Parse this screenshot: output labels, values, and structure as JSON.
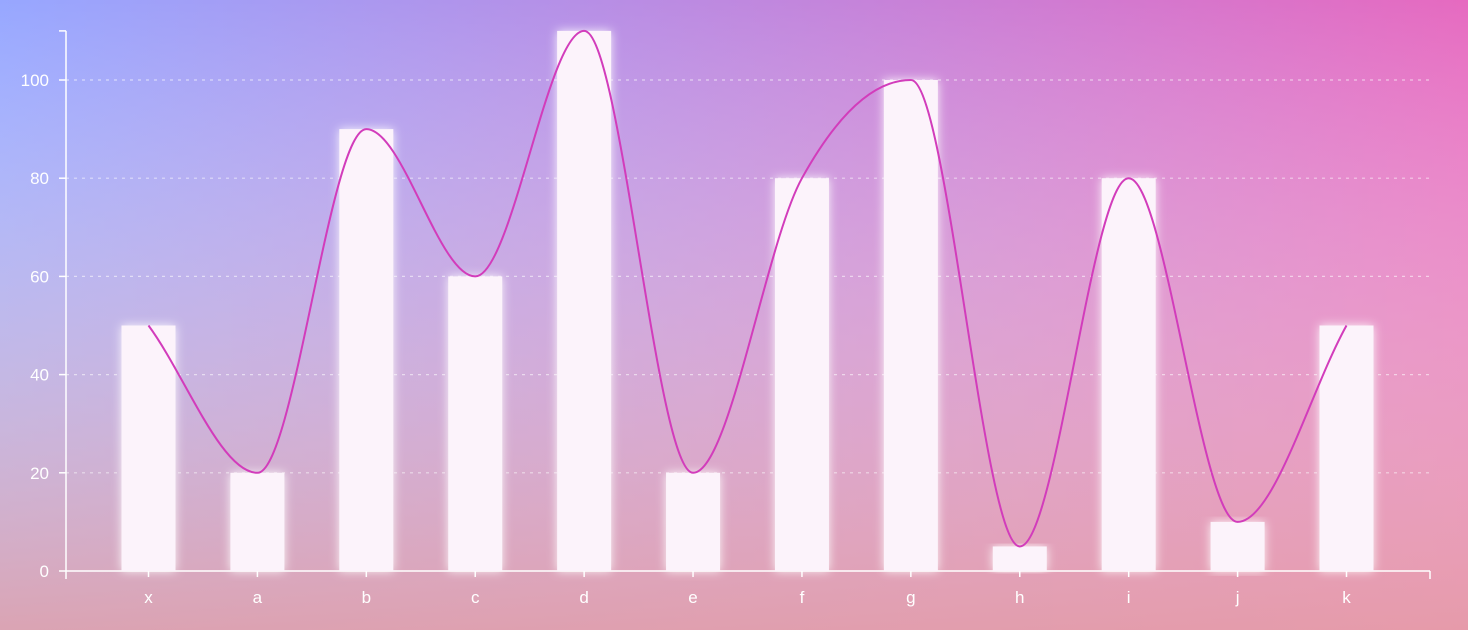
{
  "colors": {
    "bg_top_left": "#97a7ff",
    "bg_top_right": "#e66ac0",
    "bg_bottom": "#e6a3a6",
    "bar_fill": "#fcf3fb",
    "line": "#d23cbb"
  },
  "chart_data": {
    "type": "bar",
    "categories": [
      "x",
      "a",
      "b",
      "c",
      "d",
      "e",
      "f",
      "g",
      "h",
      "i",
      "j",
      "k"
    ],
    "series": [
      {
        "type": "bar",
        "values": [
          50,
          20,
          90,
          60,
          110,
          20,
          80,
          100,
          5,
          80,
          10,
          50
        ]
      },
      {
        "type": "line",
        "smooth": true,
        "values": [
          50,
          20,
          90,
          60,
          110,
          20,
          80,
          100,
          5,
          80,
          10,
          50
        ]
      }
    ],
    "yticks": [
      0,
      20,
      40,
      60,
      80,
      100
    ],
    "ylim": [
      0,
      110
    ],
    "grid": true,
    "legend": "none"
  }
}
